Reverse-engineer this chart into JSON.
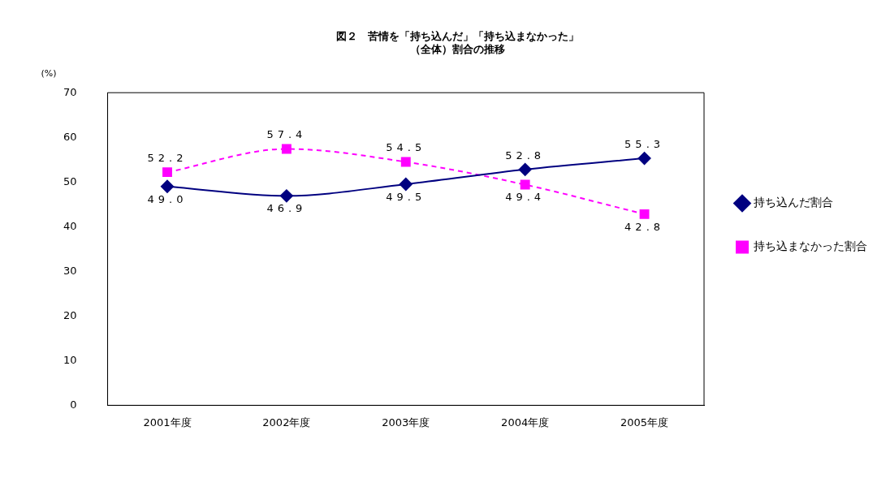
{
  "chart_data": {
    "type": "line",
    "title": "図２　苦情を「持ち込んだ」「持ち込まなかった」",
    "subtitle": "（全体）割合の推移",
    "ylabel": "(%)",
    "categories": [
      "2001年度",
      "2002年度",
      "2003年度",
      "2004年度",
      "2005年度"
    ],
    "series": [
      {
        "name": "持ち込んだ割合",
        "color": "#000080",
        "values": [
          49.0,
          46.9,
          49.5,
          52.8,
          55.3
        ],
        "value_labels": [
          "49.0",
          "46.9",
          "49.5",
          "52.8",
          "55.3"
        ],
        "marker": "diamond",
        "line_style": "solid"
      },
      {
        "name": "持ち込まなかった割合",
        "color": "#ff00ff",
        "values": [
          52.2,
          57.4,
          54.5,
          49.4,
          42.8
        ],
        "value_labels": [
          "52.2",
          "57.4",
          "54.5",
          "49.4",
          "42.8"
        ],
        "marker": "square",
        "line_style": "dashed"
      }
    ],
    "ylim": [
      0,
      70
    ],
    "yticks": [
      0,
      10,
      20,
      30,
      40,
      50,
      60,
      70
    ],
    "grid": false,
    "legend": "right"
  }
}
